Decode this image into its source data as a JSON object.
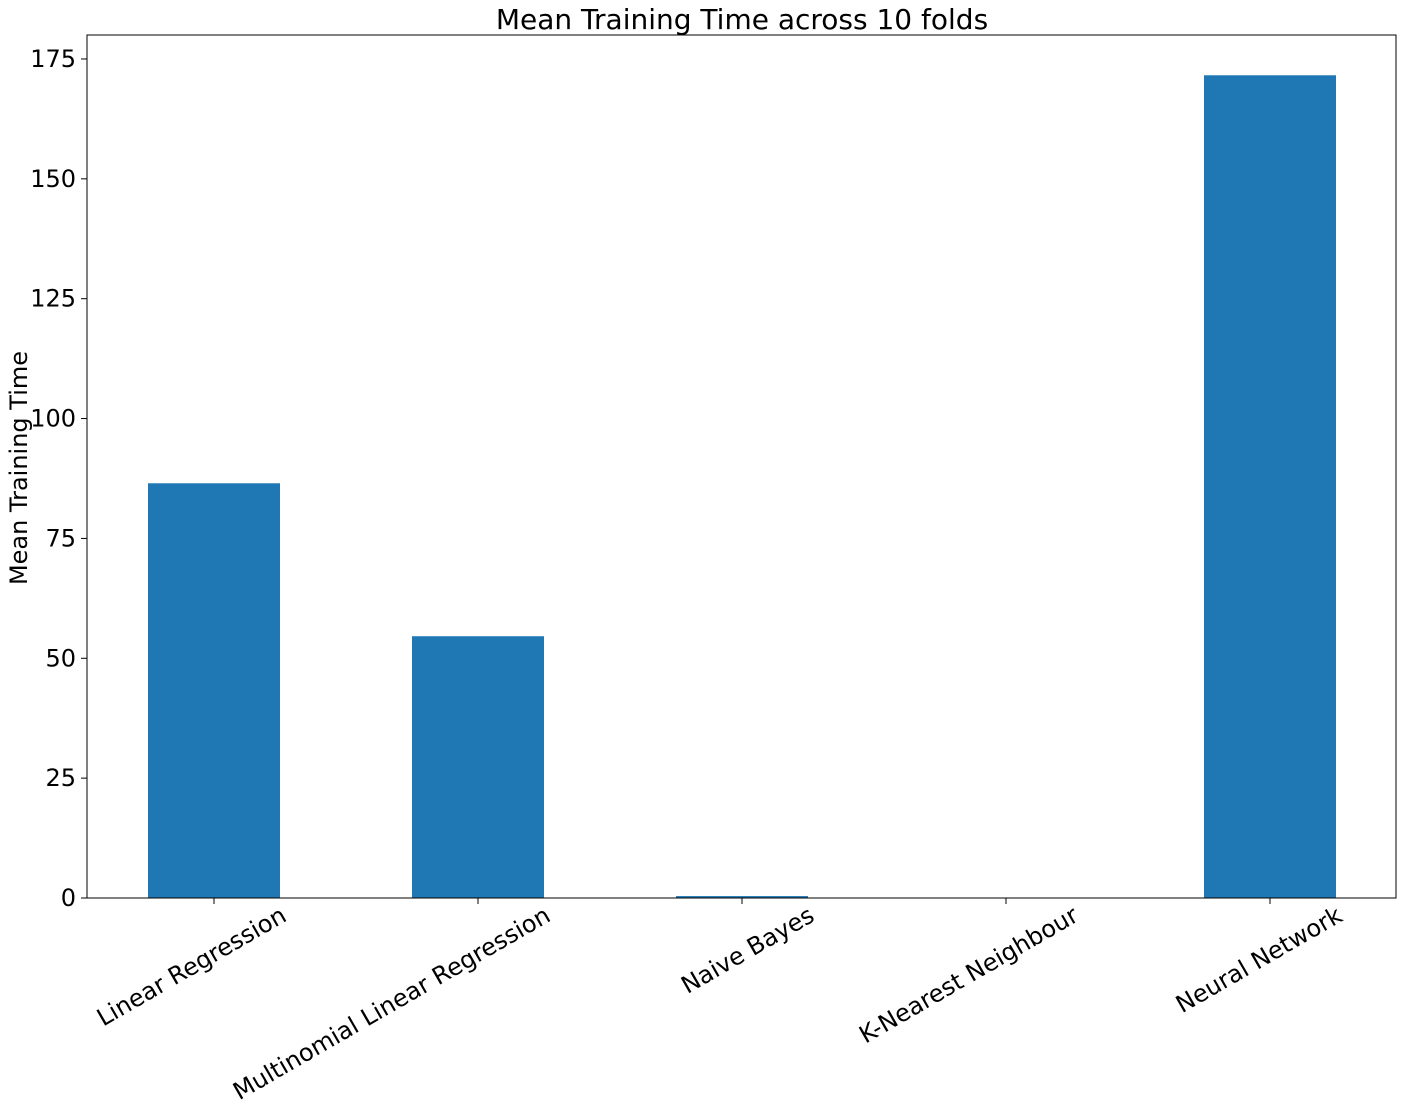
{
  "chart_data": {
    "type": "bar",
    "title": "Mean Training Time across 10 folds",
    "xlabel": "",
    "ylabel": "Mean Training Time",
    "categories": [
      "Linear Regression",
      "Multinomial Linear Regression",
      "Naive Bayes",
      "K-Nearest Neighbour",
      "Neural Network"
    ],
    "values": [
      86.5,
      54.6,
      0.4,
      0.05,
      171.6
    ],
    "ylim": [
      0,
      180
    ],
    "yticks": [
      0,
      25,
      50,
      75,
      100,
      125,
      150,
      175
    ],
    "grid": false,
    "bar_color": "#1f77b4"
  }
}
